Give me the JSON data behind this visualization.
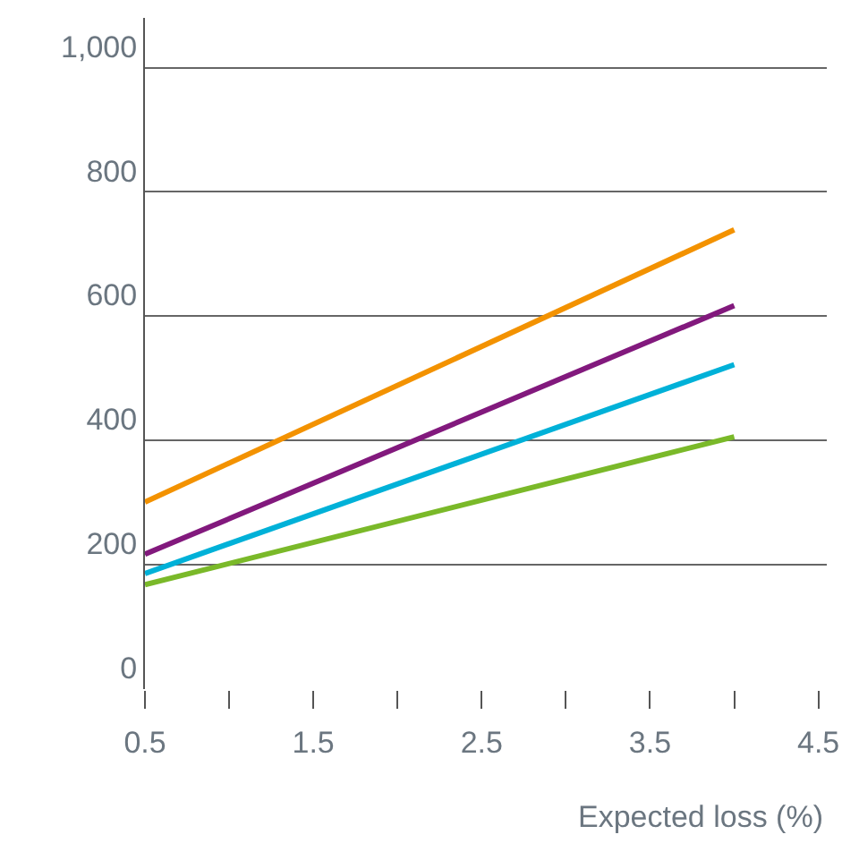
{
  "chart_data": {
    "type": "line",
    "xlabel": "Expected loss (%)",
    "x": [
      0.5,
      4.0
    ],
    "series": [
      {
        "color": "#f39200",
        "values": [
          301,
          739
        ]
      },
      {
        "color": "#82197d",
        "values": [
          217,
          617
        ]
      },
      {
        "color": "#00b1d8",
        "values": [
          186,
          522
        ]
      },
      {
        "color": "#7ab929",
        "values": [
          168,
          406
        ]
      }
    ],
    "xlim": [
      0.5,
      4.55
    ],
    "xticks": [
      0.5,
      {
        "value": 1,
        "label": null
      },
      1.5,
      {
        "value": 2,
        "label": null
      },
      2.5,
      {
        "value": 3,
        "label": null
      },
      3.5,
      {
        "value": 4,
        "label": null
      },
      4.5
    ],
    "ylim": [
      0,
      1080
    ],
    "yticks": [
      0,
      200,
      400,
      600,
      800,
      {
        "value": 1000,
        "label": "1,000"
      }
    ],
    "grid": "y",
    "marker": "none",
    "line_style": "solid"
  }
}
